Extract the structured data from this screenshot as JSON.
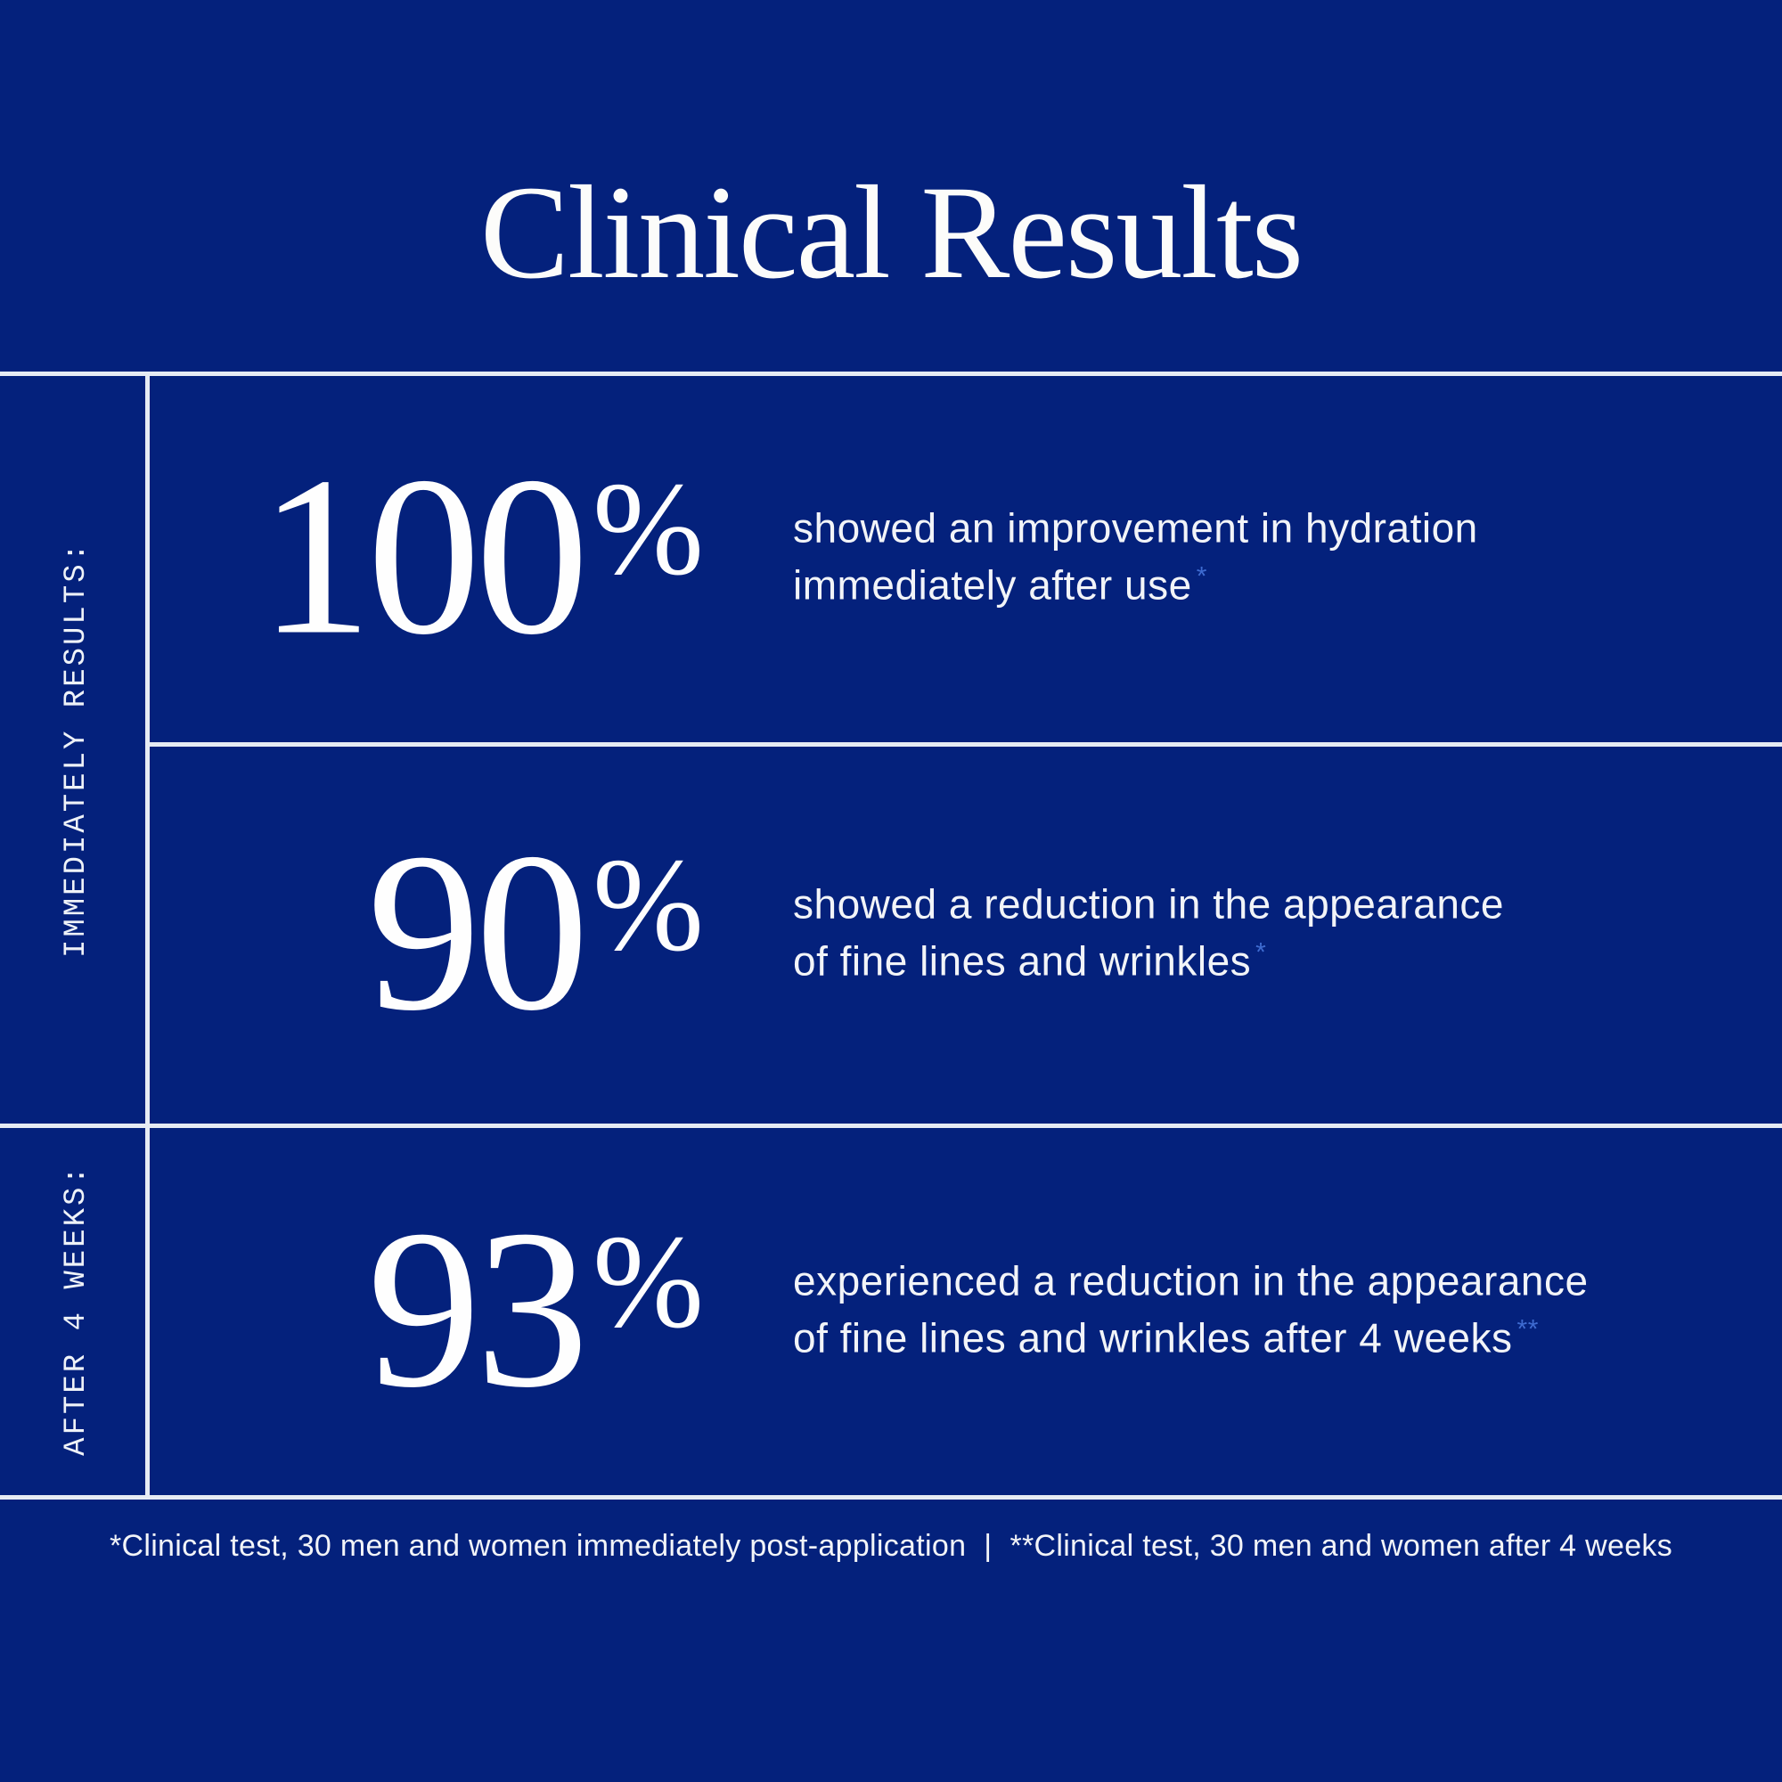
{
  "poster": {
    "title": "Clinical Results",
    "colors": {
      "background": "#04217c",
      "grid_line": "#e6ebf3",
      "text_primary": "#fcfcfa",
      "text_body": "#f2f4f8",
      "footnote_marker_accent": "#3e6bd0"
    },
    "sidebar": {
      "immediate_label": "IMMEDIATELY RESULTS:",
      "after_label": "AFTER 4 WEEKS:"
    },
    "stats": [
      {
        "value": "100",
        "unit": "%",
        "description_line1": "showed an improvement in hydration",
        "description_line2": "immediately after use",
        "marker": "*"
      },
      {
        "value": "90",
        "unit": "%",
        "description_line1": "showed a reduction in the appearance",
        "description_line2": "of fine lines and wrinkles",
        "marker": "*"
      },
      {
        "value": "93",
        "unit": "%",
        "description_line1": "experienced a reduction in the appearance",
        "description_line2": "of fine lines and wrinkles after 4 weeks",
        "marker": "**"
      }
    ],
    "footer": {
      "note_immediate": "*Clinical test, 30 men and women immediately post-application",
      "separator": "|",
      "note_after": "**Clinical test, 30 men and women after 4 weeks"
    }
  }
}
